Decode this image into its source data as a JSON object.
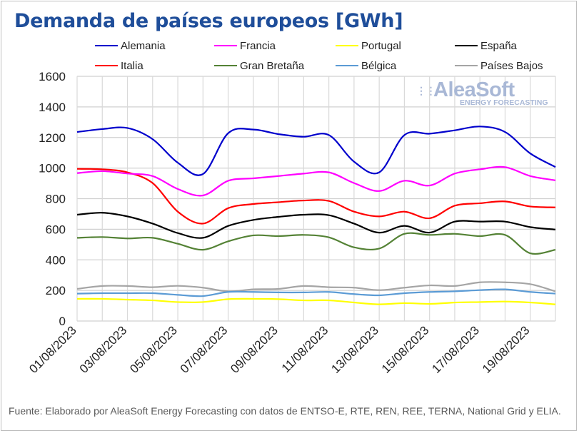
{
  "chart_data": {
    "type": "line",
    "title": "Demanda de países europeos [GWh]",
    "xlabel": "",
    "ylabel": "",
    "ylim": [
      0,
      1600
    ],
    "yticks": [
      0,
      200,
      400,
      600,
      800,
      1000,
      1200,
      1400,
      1600
    ],
    "grid": true,
    "legend_position": "top",
    "x": [
      "01/08/2023",
      "02/08/2023",
      "03/08/2023",
      "04/08/2023",
      "05/08/2023",
      "06/08/2023",
      "07/08/2023",
      "08/08/2023",
      "09/08/2023",
      "10/08/2023",
      "11/08/2023",
      "12/08/2023",
      "13/08/2023",
      "14/08/2023",
      "15/08/2023",
      "16/08/2023",
      "17/08/2023",
      "18/08/2023",
      "19/08/2023",
      "20/08/2023"
    ],
    "xtick_labels": [
      "01/08/2023",
      "03/08/2023",
      "05/08/2023",
      "07/08/2023",
      "09/08/2023",
      "11/08/2023",
      "13/08/2023",
      "15/08/2023",
      "17/08/2023",
      "19/08/2023"
    ],
    "series": [
      {
        "name": "Alemania",
        "color": "#0000cc",
        "values": [
          1236,
          1255,
          1262,
          1189,
          1035,
          961,
          1228,
          1252,
          1222,
          1205,
          1216,
          1042,
          972,
          1216,
          1225,
          1247,
          1272,
          1236,
          1096,
          1007
        ]
      },
      {
        "name": "Francia",
        "color": "#ff00ff",
        "values": [
          967,
          980,
          964,
          948,
          863,
          821,
          917,
          933,
          948,
          964,
          972,
          902,
          850,
          917,
          886,
          964,
          992,
          1006,
          948,
          920
        ]
      },
      {
        "name": "Portugal",
        "color": "#ffff00",
        "values": [
          145,
          145,
          140,
          135,
          124,
          124,
          143,
          145,
          143,
          135,
          135,
          121,
          109,
          117,
          112,
          121,
          124,
          127,
          121,
          109
        ]
      },
      {
        "name": "España",
        "color": "#000000",
        "values": [
          695,
          708,
          684,
          637,
          575,
          544,
          622,
          661,
          681,
          695,
          692,
          637,
          578,
          622,
          578,
          650,
          650,
          650,
          614,
          598
        ]
      },
      {
        "name": "Italia",
        "color": "#ff0000",
        "values": [
          995,
          992,
          972,
          902,
          715,
          637,
          738,
          765,
          777,
          788,
          785,
          715,
          684,
          715,
          672,
          754,
          770,
          782,
          749,
          743
        ]
      },
      {
        "name": "Gran Bretaña",
        "color": "#548235",
        "values": [
          544,
          549,
          540,
          544,
          505,
          466,
          521,
          560,
          555,
          563,
          547,
          482,
          474,
          570,
          563,
          570,
          555,
          563,
          443,
          466
        ]
      },
      {
        "name": "Bélgica",
        "color": "#5b9bd5",
        "values": [
          179,
          182,
          182,
          182,
          171,
          163,
          190,
          190,
          187,
          187,
          190,
          176,
          168,
          182,
          190,
          194,
          202,
          207,
          190,
          179
        ]
      },
      {
        "name": "Países Bajos",
        "color": "#a5a5a5",
        "values": [
          210,
          229,
          229,
          221,
          230,
          218,
          194,
          207,
          210,
          229,
          221,
          218,
          202,
          218,
          233,
          229,
          253,
          253,
          241,
          194
        ]
      }
    ]
  },
  "logo": {
    "name": "AleaSoft",
    "tagline": "ENERGY FORECASTING"
  },
  "footer": "Fuente: Elaborado por AleaSoft Energy Forecasting con datos de ENTSO-E, RTE, REN, REE, TERNA, National Grid y ELIA."
}
